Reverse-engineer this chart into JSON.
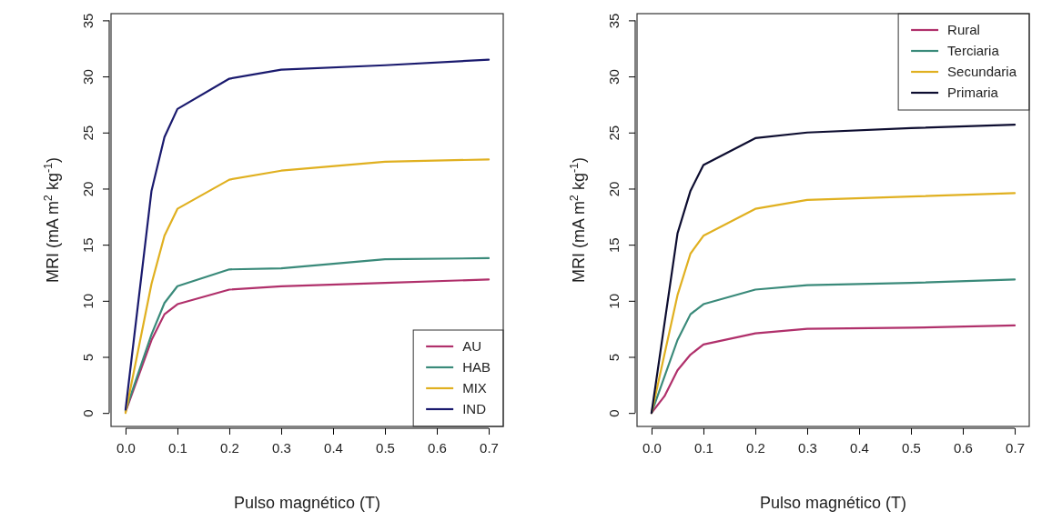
{
  "chart_data": [
    {
      "type": "line",
      "xlabel": "Pulso magnético (T)",
      "ylabel": "MRI (mA m$^{2}$ kg$^{-1}$)",
      "x": [
        0,
        0.05,
        0.075,
        0.1,
        0.2,
        0.3,
        0.5,
        0.7
      ],
      "xlim": [
        -0.028,
        0.728
      ],
      "ylim": [
        -1.2,
        35.6
      ],
      "xticks": [
        {
          "value": 0,
          "label": "0.0"
        },
        0.1,
        0.2,
        0.3,
        0.4,
        0.5,
        0.6,
        0.7
      ],
      "yticks": [
        0,
        5,
        10,
        15,
        20,
        25,
        30,
        35
      ],
      "legend": "bottom right",
      "grid": false,
      "marker": "none",
      "line_style": "solid",
      "series": [
        {
          "name": "AU",
          "color": "#b0306b",
          "values": [
            0.1,
            6.5,
            8.8,
            9.7,
            11.0,
            11.3,
            11.6,
            11.9
          ]
        },
        {
          "name": "HAB",
          "color": "#3a8a7a",
          "values": [
            0.2,
            7,
            9.8,
            11.3,
            12.8,
            12.9,
            13.7,
            13.8
          ]
        },
        {
          "name": "MIX",
          "color": "#e0b020",
          "values": [
            0,
            11.5,
            15.8,
            18.2,
            20.8,
            21.6,
            22.4,
            22.6
          ]
        },
        {
          "name": "IND",
          "color": "#1a1a6e",
          "values": [
            0.3,
            19.8,
            24.6,
            27.1,
            29.8,
            30.6,
            31.0,
            31.5
          ]
        }
      ]
    },
    {
      "type": "line",
      "xlabel": "Pulso magnético (T)",
      "ylabel": "MRI (mA m$^{2}$ kg$^{-1}$)",
      "x": [
        0,
        0.05,
        0.075,
        0.1,
        0.2,
        0.3,
        0.5,
        0.7
      ],
      "xlim": [
        -0.028,
        0.728
      ],
      "ylim": [
        -1.2,
        35.6
      ],
      "xticks": [
        {
          "value": 0,
          "label": "0.0"
        },
        0.1,
        0.2,
        0.3,
        0.4,
        0.5,
        0.6,
        0.7
      ],
      "yticks": [
        0,
        5,
        10,
        15,
        20,
        25,
        30,
        35
      ],
      "legend": "top right",
      "grid": false,
      "marker": "none",
      "line_style": "solid",
      "series": [
        {
          "name": "Rural",
          "color": "#b0306b",
          "x": [
            0,
            0.025,
            0.05,
            0.075,
            0.1,
            0.2,
            0.3,
            0.5,
            0.7
          ],
          "values": [
            0,
            1.5,
            3.8,
            5.2,
            6.1,
            7.1,
            7.5,
            7.6,
            7.8
          ]
        },
        {
          "name": "Terciaria",
          "color": "#3a8a7a",
          "values": [
            0,
            6.5,
            8.8,
            9.7,
            11.0,
            11.4,
            11.6,
            11.9
          ]
        },
        {
          "name": "Secundaria",
          "color": "#e0b020",
          "values": [
            0,
            10.5,
            14.2,
            15.8,
            18.2,
            19.0,
            19.3,
            19.6
          ]
        },
        {
          "name": "Primaria",
          "color": "#0d0d30",
          "values": [
            0,
            16,
            19.8,
            22.1,
            24.5,
            25.0,
            25.4,
            25.7
          ]
        }
      ]
    }
  ]
}
